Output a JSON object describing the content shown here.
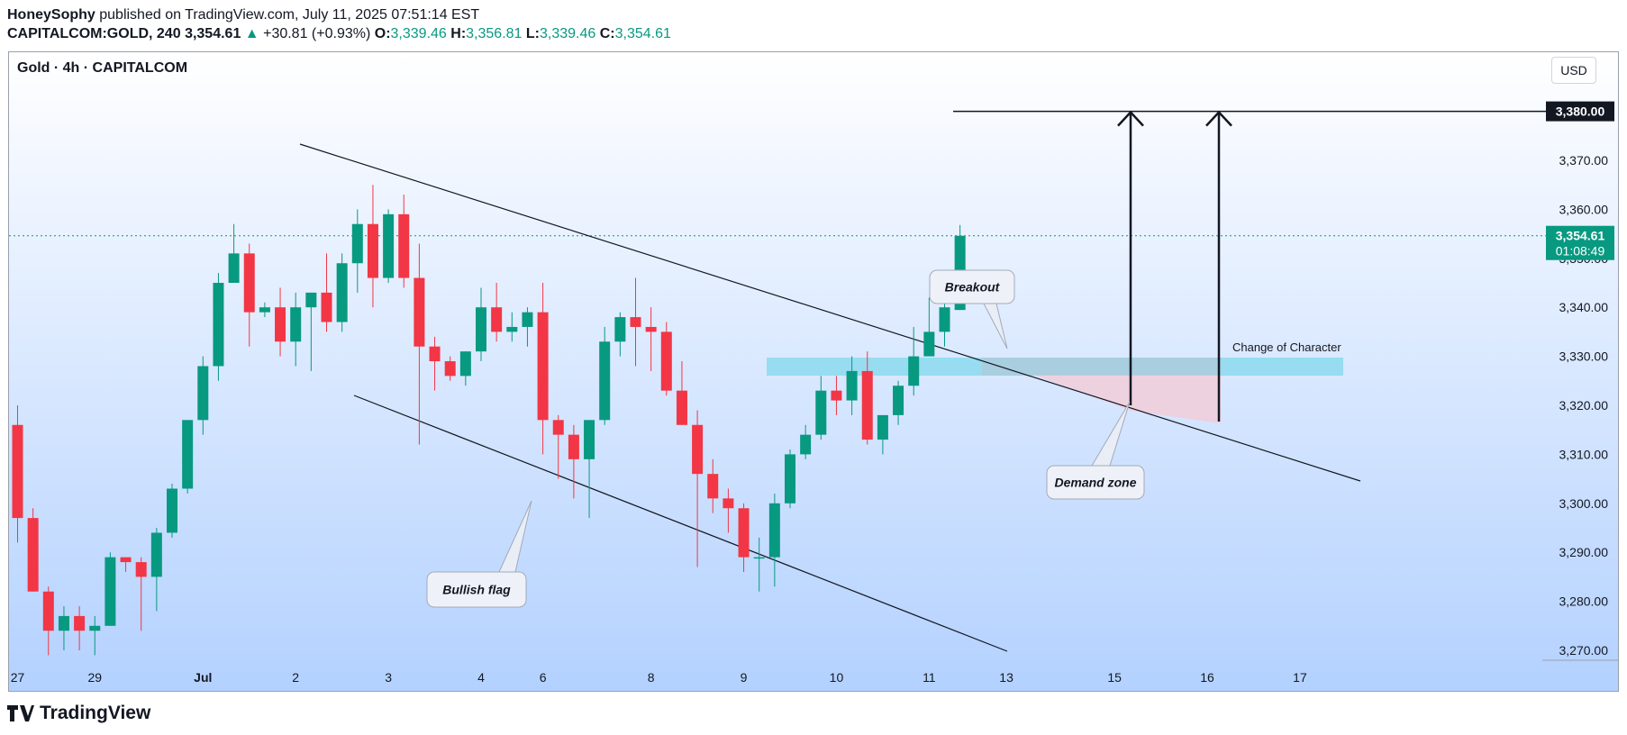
{
  "header": {
    "author": "HoneySophy",
    "published": "published on TradingView.com, July 11, 2025 07:51:14 EST",
    "symbol": "CAPITALCOM:GOLD, 240",
    "last": "3,354.61",
    "change": "+30.81 (+0.93%)",
    "o_label": "O:",
    "o": "3,339.46",
    "h_label": "H:",
    "h": "3,356.81",
    "l_label": "L:",
    "l": "3,339.46",
    "c_label": "C:",
    "c": "3,354.61"
  },
  "chart_title": "Gold · 4h · CAPITALCOM",
  "currency_button": "USD",
  "footer_logo": "TradingView",
  "colors": {
    "up": "#089981",
    "down": "#f23645",
    "demand_zone": "#c9dcff",
    "band": "#80d8ec",
    "bg_top": "#ffffff",
    "bg_bottom": "#b3d1ff"
  },
  "chart_data": {
    "type": "candlestick",
    "ylim": [
      3265,
      3395
    ],
    "y_ticks": [
      "3,270.00",
      "3,280.00",
      "3,290.00",
      "3,300.00",
      "3,310.00",
      "3,320.00",
      "3,330.00",
      "3,340.00",
      "3,350.00",
      "3,360.00",
      "3,370.00"
    ],
    "y_tick_values": [
      3270,
      3280,
      3290,
      3300,
      3310,
      3320,
      3330,
      3340,
      3350,
      3360,
      3370
    ],
    "x_ticks": [
      {
        "label": "27",
        "i": 0
      },
      {
        "label": "29",
        "i": 5
      },
      {
        "label": "Jul",
        "i": 12
      },
      {
        "label": "2",
        "i": 18
      },
      {
        "label": "3",
        "i": 24
      },
      {
        "label": "4",
        "i": 30
      },
      {
        "label": "6",
        "i": 34
      },
      {
        "label": "8",
        "i": 41
      },
      {
        "label": "9",
        "i": 47
      },
      {
        "label": "10",
        "i": 53
      },
      {
        "label": "11",
        "i": 59
      },
      {
        "label": "13",
        "i": 64
      },
      {
        "label": "15",
        "i": 71
      },
      {
        "label": "16",
        "i": 77
      },
      {
        "label": "17",
        "i": 83
      }
    ],
    "candles": [
      {
        "o": 3316,
        "h": 3320,
        "l": 3292,
        "c": 3297
      },
      {
        "o": 3297,
        "h": 3299,
        "l": 3282,
        "c": 3282
      },
      {
        "o": 3282,
        "h": 3283,
        "l": 3269,
        "c": 3274
      },
      {
        "o": 3274,
        "h": 3279,
        "l": 3270,
        "c": 3277
      },
      {
        "o": 3277,
        "h": 3279,
        "l": 3270,
        "c": 3274
      },
      {
        "o": 3274,
        "h": 3277,
        "l": 3269,
        "c": 3275
      },
      {
        "o": 3275,
        "h": 3290,
        "l": 3275,
        "c": 3289
      },
      {
        "o": 3289,
        "h": 3289,
        "l": 3286,
        "c": 3288
      },
      {
        "o": 3288,
        "h": 3289,
        "l": 3274,
        "c": 3285
      },
      {
        "o": 3285,
        "h": 3295,
        "l": 3278,
        "c": 3294
      },
      {
        "o": 3294,
        "h": 3304,
        "l": 3293,
        "c": 3303
      },
      {
        "o": 3303,
        "h": 3317,
        "l": 3302,
        "c": 3317
      },
      {
        "o": 3317,
        "h": 3330,
        "l": 3314,
        "c": 3328
      },
      {
        "o": 3328,
        "h": 3347,
        "l": 3325,
        "c": 3345
      },
      {
        "o": 3345,
        "h": 3357,
        "l": 3345,
        "c": 3351
      },
      {
        "o": 3351,
        "h": 3353,
        "l": 3332,
        "c": 3339
      },
      {
        "o": 3339,
        "h": 3341,
        "l": 3338,
        "c": 3340
      },
      {
        "o": 3340,
        "h": 3344,
        "l": 3330,
        "c": 3333
      },
      {
        "o": 3333,
        "h": 3343,
        "l": 3328,
        "c": 3340
      },
      {
        "o": 3340,
        "h": 3343,
        "l": 3327,
        "c": 3343
      },
      {
        "o": 3343,
        "h": 3351,
        "l": 3335,
        "c": 3337
      },
      {
        "o": 3337,
        "h": 3351,
        "l": 3335,
        "c": 3349
      },
      {
        "o": 3349,
        "h": 3360,
        "l": 3343,
        "c": 3357
      },
      {
        "o": 3357,
        "h": 3365,
        "l": 3340,
        "c": 3346
      },
      {
        "o": 3346,
        "h": 3360,
        "l": 3345,
        "c": 3359
      },
      {
        "o": 3359,
        "h": 3363,
        "l": 3344,
        "c": 3346
      },
      {
        "o": 3346,
        "h": 3353,
        "l": 3312,
        "c": 3332
      },
      {
        "o": 3332,
        "h": 3334,
        "l": 3323,
        "c": 3329
      },
      {
        "o": 3329,
        "h": 3330,
        "l": 3325,
        "c": 3326
      },
      {
        "o": 3326,
        "h": 3331,
        "l": 3324,
        "c": 3331
      },
      {
        "o": 3331,
        "h": 3344,
        "l": 3329,
        "c": 3340
      },
      {
        "o": 3340,
        "h": 3345,
        "l": 3333,
        "c": 3335
      },
      {
        "o": 3335,
        "h": 3339,
        "l": 3333,
        "c": 3336
      },
      {
        "o": 3336,
        "h": 3340,
        "l": 3332,
        "c": 3339
      },
      {
        "o": 3339,
        "h": 3345,
        "l": 3310,
        "c": 3317
      },
      {
        "o": 3317,
        "h": 3318,
        "l": 3305,
        "c": 3314
      },
      {
        "o": 3314,
        "h": 3316,
        "l": 3301,
        "c": 3309
      },
      {
        "o": 3309,
        "h": 3317,
        "l": 3297,
        "c": 3317
      },
      {
        "o": 3317,
        "h": 3336,
        "l": 3316,
        "c": 3333
      },
      {
        "o": 3333,
        "h": 3339,
        "l": 3330,
        "c": 3338
      },
      {
        "o": 3338,
        "h": 3346,
        "l": 3328,
        "c": 3336
      },
      {
        "o": 3336,
        "h": 3340,
        "l": 3327,
        "c": 3335
      },
      {
        "o": 3335,
        "h": 3337,
        "l": 3322,
        "c": 3323
      },
      {
        "o": 3323,
        "h": 3329,
        "l": 3316,
        "c": 3316
      },
      {
        "o": 3316,
        "h": 3319,
        "l": 3287,
        "c": 3306
      },
      {
        "o": 3306,
        "h": 3309,
        "l": 3298,
        "c": 3301
      },
      {
        "o": 3301,
        "h": 3303,
        "l": 3294,
        "c": 3299
      },
      {
        "o": 3299,
        "h": 3300,
        "l": 3286,
        "c": 3289
      },
      {
        "o": 3289,
        "h": 3293,
        "l": 3282,
        "c": 3289
      },
      {
        "o": 3289,
        "h": 3302,
        "l": 3283,
        "c": 3300
      },
      {
        "o": 3300,
        "h": 3311,
        "l": 3299,
        "c": 3310
      },
      {
        "o": 3310,
        "h": 3316,
        "l": 3309,
        "c": 3314
      },
      {
        "o": 3314,
        "h": 3326,
        "l": 3313,
        "c": 3323
      },
      {
        "o": 3323,
        "h": 3326,
        "l": 3318,
        "c": 3321
      },
      {
        "o": 3321,
        "h": 3330,
        "l": 3318,
        "c": 3327
      },
      {
        "o": 3327,
        "h": 3331,
        "l": 3312,
        "c": 3313
      },
      {
        "o": 3313,
        "h": 3318,
        "l": 3310,
        "c": 3318
      },
      {
        "o": 3318,
        "h": 3325,
        "l": 3316,
        "c": 3324
      },
      {
        "o": 3324,
        "h": 3336,
        "l": 3322,
        "c": 3330
      },
      {
        "o": 3330,
        "h": 3342,
        "l": 3330,
        "c": 3335
      },
      {
        "o": 3335,
        "h": 3343,
        "l": 3332,
        "c": 3340
      },
      {
        "o": 3339.46,
        "h": 3356.81,
        "l": 3339.46,
        "c": 3354.61
      }
    ],
    "last_price_label": "3,354.61",
    "countdown": "01:08:49",
    "target_label": "3,380.00",
    "target_value": 3380,
    "annotations": [
      "Breakout",
      "Demand zone",
      "Bullish flag",
      "Change of Character"
    ]
  }
}
